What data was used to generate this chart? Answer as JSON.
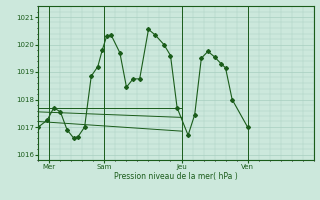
{
  "bg_color": "#cce8dc",
  "line_color": "#1a5c1a",
  "grid_color": "#a8cfc0",
  "xlabel": "Pression niveau de la mer( hPa )",
  "ylim": [
    1015.8,
    1021.4
  ],
  "yticks": [
    1016,
    1017,
    1018,
    1019,
    1020,
    1021
  ],
  "day_labels": [
    "Mer",
    "Sam",
    "Jeu",
    "Ven"
  ],
  "day_positions": [
    0.5,
    3.0,
    6.5,
    9.5
  ],
  "vlines": [
    0.5,
    3.0,
    6.5,
    9.5
  ],
  "xlim": [
    0,
    12.5
  ],
  "series1": [
    [
      0.0,
      1017.0
    ],
    [
      0.4,
      1017.25
    ],
    [
      0.7,
      1017.7
    ],
    [
      1.0,
      1017.55
    ],
    [
      1.3,
      1016.9
    ],
    [
      1.6,
      1016.6
    ],
    [
      1.8,
      1016.65
    ],
    [
      2.1,
      1017.0
    ],
    [
      2.4,
      1018.85
    ],
    [
      2.7,
      1019.2
    ],
    [
      2.9,
      1019.8
    ],
    [
      3.1,
      1020.3
    ],
    [
      3.3,
      1020.35
    ],
    [
      3.7,
      1019.7
    ],
    [
      4.0,
      1018.45
    ],
    [
      4.3,
      1018.75
    ],
    [
      4.6,
      1018.75
    ],
    [
      5.0,
      1020.55
    ],
    [
      5.3,
      1020.35
    ],
    [
      5.7,
      1020.0
    ],
    [
      6.0,
      1019.6
    ],
    [
      6.3,
      1017.7
    ],
    [
      6.8,
      1016.7
    ],
    [
      7.1,
      1017.45
    ],
    [
      7.4,
      1019.5
    ],
    [
      7.7,
      1019.75
    ],
    [
      8.0,
      1019.55
    ],
    [
      8.3,
      1019.3
    ],
    [
      8.5,
      1019.15
    ],
    [
      8.8,
      1018.0
    ],
    [
      9.5,
      1017.0
    ]
  ],
  "series2": [
    [
      0.0,
      1017.7
    ],
    [
      6.5,
      1017.7
    ]
  ],
  "series3": [
    [
      0.0,
      1017.55
    ],
    [
      6.5,
      1017.35
    ]
  ],
  "series4": [
    [
      0.0,
      1017.2
    ],
    [
      6.5,
      1016.85
    ]
  ]
}
